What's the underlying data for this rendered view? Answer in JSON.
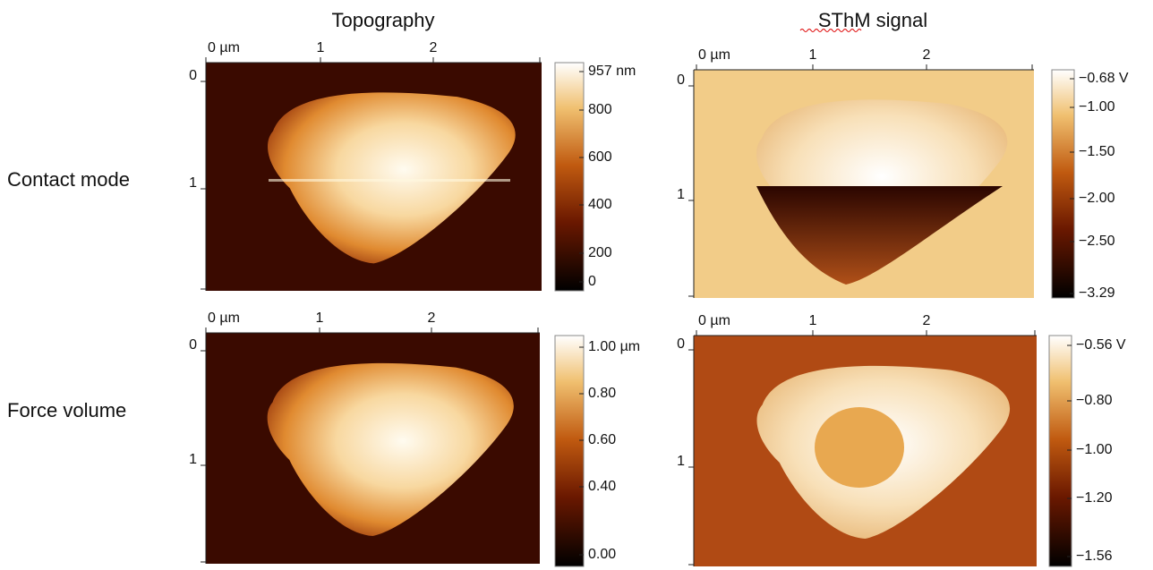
{
  "column_titles": [
    "Topography",
    "SThM signal"
  ],
  "row_labels": [
    "Contact mode",
    "Force volume"
  ],
  "panels": [
    {
      "x_ticks": [
        "0 µm",
        "1",
        "2"
      ],
      "y_ticks": [
        "0",
        "1"
      ],
      "colorbar_labels": [
        "957 nm",
        "800",
        "600",
        "400",
        "200",
        "0"
      ]
    },
    {
      "x_ticks": [
        "0 µm",
        "1",
        "2"
      ],
      "y_ticks": [
        "0",
        "1"
      ],
      "colorbar_labels": [
        "−0.68 V",
        "−1.00",
        "−1.50",
        "−2.00",
        "−2.50",
        "−3.29"
      ]
    },
    {
      "x_ticks": [
        "0 µm",
        "1",
        "2"
      ],
      "y_ticks": [
        "0",
        "1"
      ],
      "colorbar_labels": [
        "1.00 µm",
        "0.80",
        "0.60",
        "0.40",
        "0.00"
      ]
    },
    {
      "x_ticks": [
        "0 µm",
        "1",
        "2"
      ],
      "y_ticks": [
        "0",
        "1"
      ],
      "colorbar_labels": [
        "−0.56 V",
        "−0.80",
        "−1.00",
        "−1.20",
        "−1.56"
      ]
    }
  ]
}
